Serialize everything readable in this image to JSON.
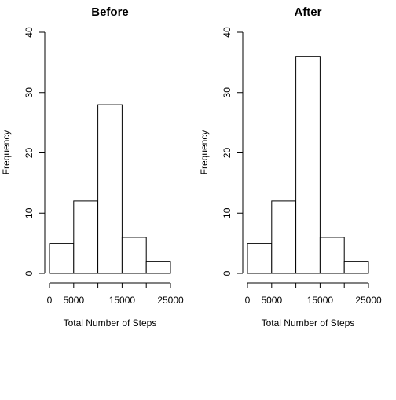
{
  "chart_data": [
    {
      "type": "bar",
      "title": "Before",
      "xlabel": "Total Number of Steps",
      "ylabel": "Frequency",
      "bins": [
        [
          0,
          5000
        ],
        [
          5000,
          10000
        ],
        [
          10000,
          15000
        ],
        [
          15000,
          20000
        ],
        [
          20000,
          25000
        ]
      ],
      "values": [
        5,
        12,
        28,
        6,
        2
      ],
      "xlim": [
        0,
        25000
      ],
      "ylim": [
        0,
        40
      ],
      "xticks": [
        "0",
        "5000",
        "15000",
        "25000"
      ],
      "xtick_values": [
        0,
        5000,
        15000,
        25000
      ],
      "yticks": [
        "0",
        "10",
        "20",
        "30",
        "40"
      ],
      "ytick_values": [
        0,
        10,
        20,
        30,
        40
      ],
      "grid": false,
      "bar_fill": "#ffffff",
      "bar_stroke": "#000000"
    },
    {
      "type": "bar",
      "title": "After",
      "xlabel": "Total Number of Steps",
      "ylabel": "Frequency",
      "bins": [
        [
          0,
          5000
        ],
        [
          5000,
          10000
        ],
        [
          10000,
          15000
        ],
        [
          15000,
          20000
        ],
        [
          20000,
          25000
        ]
      ],
      "values": [
        5,
        12,
        36,
        6,
        2
      ],
      "xlim": [
        0,
        25000
      ],
      "ylim": [
        0,
        40
      ],
      "xticks": [
        "0",
        "5000",
        "15000",
        "25000"
      ],
      "xtick_values": [
        0,
        5000,
        15000,
        25000
      ],
      "yticks": [
        "0",
        "10",
        "20",
        "30",
        "40"
      ],
      "ytick_values": [
        0,
        10,
        20,
        30,
        40
      ],
      "grid": false,
      "bar_fill": "#ffffff",
      "bar_stroke": "#000000"
    }
  ]
}
